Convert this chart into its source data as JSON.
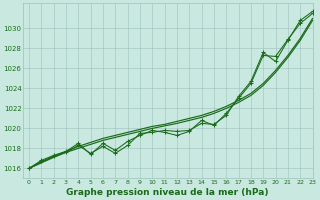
{
  "title": "Graphe pression niveau de la mer (hPa)",
  "background_color": "#c8e8e0",
  "plot_bg_color": "#c8e8e0",
  "grid_color": "#9fbfbf",
  "line_color": "#1a6b1a",
  "xlim": [
    -0.5,
    23
  ],
  "ylim": [
    1015.0,
    1032.5
  ],
  "xticks": [
    0,
    1,
    2,
    3,
    4,
    5,
    6,
    7,
    8,
    9,
    10,
    11,
    12,
    13,
    14,
    15,
    16,
    17,
    18,
    19,
    20,
    21,
    22,
    23
  ],
  "yticks": [
    1016,
    1018,
    1020,
    1022,
    1024,
    1026,
    1028,
    1030
  ],
  "hours": [
    0,
    1,
    2,
    3,
    4,
    5,
    6,
    7,
    8,
    9,
    10,
    11,
    12,
    13,
    14,
    15,
    16,
    17,
    18,
    19,
    20,
    21,
    22,
    23
  ],
  "series_jagged1": [
    1016.0,
    1016.7,
    1017.2,
    1017.6,
    1018.3,
    1017.5,
    1018.2,
    1017.5,
    1018.3,
    1019.5,
    1019.6,
    1019.8,
    1019.7,
    1019.8,
    1020.5,
    1020.4,
    1021.3,
    1023.2,
    1024.7,
    1027.6,
    1026.7,
    1028.8,
    1030.8,
    1031.7
  ],
  "series_jagged2": [
    1016.0,
    1016.8,
    1017.3,
    1017.7,
    1018.5,
    1017.4,
    1018.5,
    1017.8,
    1018.7,
    1019.3,
    1019.8,
    1019.6,
    1019.3,
    1019.7,
    1020.8,
    1020.3,
    1021.5,
    1023.0,
    1024.5,
    1027.3,
    1027.2,
    1028.9,
    1030.5,
    1031.5
  ],
  "series_linear1": [
    1016.0,
    1016.6,
    1017.2,
    1017.7,
    1018.2,
    1018.6,
    1019.0,
    1019.3,
    1019.6,
    1019.9,
    1020.2,
    1020.4,
    1020.7,
    1021.0,
    1021.3,
    1021.7,
    1022.2,
    1022.8,
    1023.5,
    1024.5,
    1025.8,
    1027.3,
    1029.0,
    1031.0
  ],
  "series_linear2": [
    1016.0,
    1016.55,
    1017.1,
    1017.6,
    1018.0,
    1018.4,
    1018.8,
    1019.1,
    1019.4,
    1019.7,
    1020.0,
    1020.25,
    1020.5,
    1020.8,
    1021.1,
    1021.5,
    1022.0,
    1022.6,
    1023.3,
    1024.3,
    1025.6,
    1027.1,
    1028.8,
    1030.8
  ]
}
